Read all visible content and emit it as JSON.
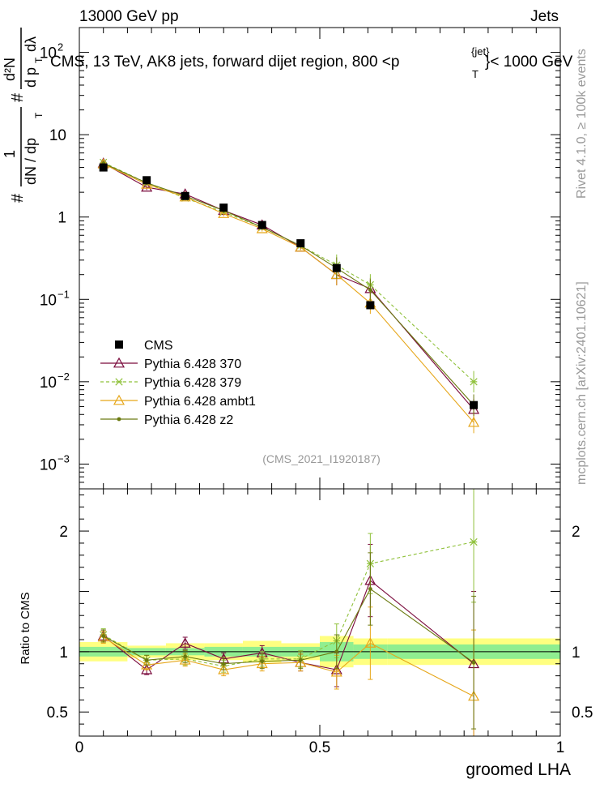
{
  "header": {
    "left": "13000 GeV pp",
    "right": "Jets",
    "side_rivet": "Rivet 4.1.0, ≥ 100k events",
    "side_mcplots": "mcplots.cern.ch [arXiv:2401.10621]",
    "watermark": "(CMS_2021_I1920187)"
  },
  "chart_data": {
    "type": "line",
    "title_main": "CMS, 13 TeV, AK8 jets, forward dijet region, 800 <p",
    "title_sup": "{jet}",
    "title_sub": "T",
    "title_end": "}< 1000 GeV",
    "xlabel": "groomed LHA",
    "ylabel_top_frac_num": "1",
    "ylabel_top_frac_den": "dN / dp",
    "ylabel_top_frac_den_sub": "T",
    "ylabel_top_hash1": "#",
    "ylabel_top_hash2": "#",
    "ylabel_top_d2n": "d²N",
    "ylabel_top_dpt": "d p",
    "ylabel_top_dpt_sub": "T",
    "ylabel_top_dlambda": "dλ",
    "ylabel_ratio": "Ratio to CMS",
    "xlim": [
      0,
      1
    ],
    "ylim_main": [
      0.0005,
      200
    ],
    "ylim_ratio": [
      0.3,
      2.35
    ],
    "x_ticks": [
      {
        "v": 0,
        "label": "0"
      },
      {
        "v": 0.5,
        "label": "0.5"
      },
      {
        "v": 1,
        "label": "1"
      }
    ],
    "y_ticks_main": [
      {
        "v": 100,
        "base": "10",
        "exp": "2"
      },
      {
        "v": 10,
        "base": "10",
        "exp": ""
      },
      {
        "v": 1,
        "base": "1",
        "exp": ""
      },
      {
        "v": 0.1,
        "base": "10",
        "exp": "−1"
      },
      {
        "v": 0.01,
        "base": "10",
        "exp": "−2"
      },
      {
        "v": 0.001,
        "base": "10",
        "exp": "−3"
      }
    ],
    "y_ticks_ratio": [
      {
        "v": 0.5,
        "label": "0.5"
      },
      {
        "v": 1,
        "label": "1"
      },
      {
        "v": 2,
        "label": "2"
      }
    ],
    "bins": [
      {
        "lo": 0,
        "hi": 0.1
      },
      {
        "lo": 0.1,
        "hi": 0.18
      },
      {
        "lo": 0.18,
        "hi": 0.26
      },
      {
        "lo": 0.26,
        "hi": 0.34
      },
      {
        "lo": 0.34,
        "hi": 0.42
      },
      {
        "lo": 0.42,
        "hi": 0.5
      },
      {
        "lo": 0.5,
        "hi": 0.57
      },
      {
        "lo": 0.57,
        "hi": 0.64
      },
      {
        "lo": 0.64,
        "hi": 1.0
      }
    ],
    "x": [
      0.05,
      0.14,
      0.22,
      0.3,
      0.38,
      0.46,
      0.535,
      0.605,
      0.82
    ],
    "data": {
      "name": "CMS",
      "values": [
        4.0,
        2.8,
        1.8,
        1.3,
        0.8,
        0.48,
        0.24,
        0.085,
        0.0052
      ],
      "band_stat": [
        0.04,
        0.03,
        0.03,
        0.04,
        0.04,
        0.04,
        0.08,
        0.06,
        0.06
      ],
      "band_tot": [
        0.08,
        0.05,
        0.07,
        0.07,
        0.09,
        0.07,
        0.13,
        0.11,
        0.11
      ]
    },
    "series": [
      {
        "name": "Pythia 6.428 370",
        "color": "#7a0a3c",
        "marker": "triangle-open",
        "dash": "",
        "values": [
          4.5,
          2.3,
          1.9,
          1.2,
          0.8,
          0.43,
          0.2,
          0.135,
          0.0046
        ],
        "ratio": [
          1.13,
          0.85,
          1.07,
          0.94,
          0.99,
          0.91,
          0.85,
          1.59,
          0.9
        ],
        "ratio_err": [
          0.05,
          0.04,
          0.05,
          0.05,
          0.06,
          0.07,
          0.14,
          0.3,
          0.6
        ]
      },
      {
        "name": "Pythia 6.428 379",
        "color": "#8fc13a",
        "marker": "star",
        "dash": "4,3",
        "values": [
          4.6,
          2.6,
          1.7,
          1.15,
          0.75,
          0.45,
          0.26,
          0.15,
          0.01
        ],
        "ratio": [
          1.14,
          0.93,
          0.94,
          0.88,
          0.94,
          0.94,
          1.09,
          1.73,
          1.91
        ],
        "ratio_err": [
          0.05,
          0.04,
          0.05,
          0.05,
          0.06,
          0.07,
          0.14,
          0.25,
          0.5
        ]
      },
      {
        "name": "Pythia 6.428 ambt1",
        "color": "#e6a619",
        "marker": "triangle-open",
        "dash": "",
        "values": [
          4.4,
          2.5,
          1.75,
          1.1,
          0.72,
          0.43,
          0.2,
          0.09,
          0.0032
        ],
        "ratio": [
          1.12,
          0.89,
          0.93,
          0.85,
          0.9,
          0.91,
          0.83,
          1.07,
          0.63
        ],
        "ratio_err": [
          0.05,
          0.04,
          0.05,
          0.05,
          0.06,
          0.07,
          0.14,
          0.3,
          0.55
        ]
      },
      {
        "name": "Pythia 6.428 z2",
        "color": "#6b7a10",
        "marker": "dot",
        "dash": "",
        "values": [
          4.5,
          2.6,
          1.8,
          1.2,
          0.75,
          0.45,
          0.24,
          0.13,
          0.0052
        ],
        "ratio": [
          1.13,
          0.93,
          0.96,
          0.9,
          0.92,
          0.93,
          1.0,
          1.52,
          0.91
        ],
        "ratio_err": [
          0.05,
          0.04,
          0.05,
          0.05,
          0.06,
          0.07,
          0.14,
          0.3,
          0.55
        ]
      }
    ]
  }
}
